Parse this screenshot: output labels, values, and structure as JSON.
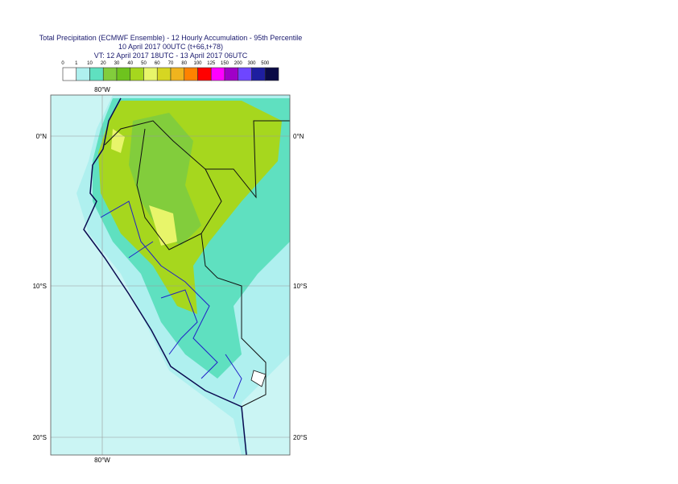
{
  "header": {
    "title": "Total Precipitation (ECMWF Ensemble) - 12 Hourly Accumulation - 95th Percentile",
    "run": "10 April 2017 00UTC (t+66,t+78)",
    "valid": "VT: 12 April 2017 18UTC - 13 April 2017 06UTC"
  },
  "legend": {
    "labels": [
      0,
      1,
      10,
      20,
      30,
      40,
      50,
      60,
      70,
      80,
      100,
      125,
      150,
      200,
      300,
      500
    ],
    "colors": [
      "#ffffff",
      "#aff0ef",
      "#5fe0c0",
      "#82cd3c",
      "#6ec31e",
      "#a6d71e",
      "#e8f56a",
      "#d6d622",
      "#f0b41e",
      "#ff8200",
      "#ff0000",
      "#ff00ff",
      "#a000c8",
      "#6e46ff",
      "#1e1ea0",
      "#0a0a46"
    ]
  },
  "map": {
    "lon_top": "80°W",
    "lon_bottom": "80°W",
    "lat_labels": [
      "0°N",
      "10°S",
      "20°S"
    ]
  }
}
